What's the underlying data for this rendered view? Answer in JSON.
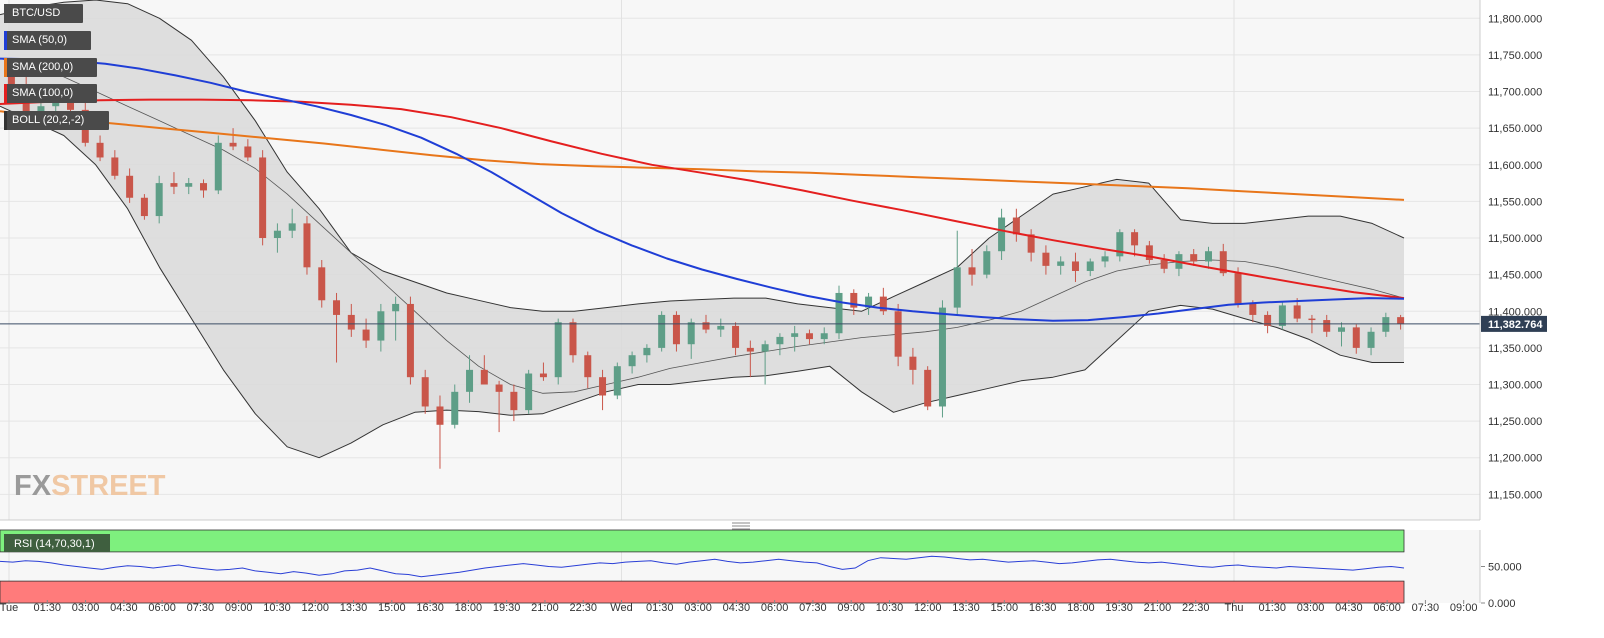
{
  "symbol": "BTC/USD",
  "indicators": [
    {
      "label": "SMA (50,0)",
      "color": "#1f3ed6"
    },
    {
      "label": "SMA (200,0)",
      "color": "#e8761a"
    },
    {
      "label": "SMA (100,0)",
      "color": "#e41f1f"
    },
    {
      "label": "BOLL (20,2,-2)",
      "color": "#333333"
    }
  ],
  "rsi_label": "RSI (14,70,30,1)",
  "logo": {
    "part1": "FX",
    "part2": "STREET"
  },
  "current_price_label": "11,382.764",
  "colors": {
    "up": "#5e9e87",
    "down": "#c9564a",
    "band_fill": "#d9d9d9",
    "sma50": "#1f3ed6",
    "sma100": "#e41f1f",
    "sma200": "#e8761a",
    "rsi": "#2a3fd6",
    "rsi_overbought": "#7ef07e",
    "rsi_oversold": "#ff7b7b"
  },
  "chart_data": [
    {
      "type": "candlestick",
      "title": "BTC/USD",
      "ylim": [
        11115,
        11825
      ],
      "y_ticks": [
        "11,800.000",
        "11,750.000",
        "11,700.000",
        "11,650.000",
        "11,600.000",
        "11,550.000",
        "11,500.000",
        "11,450.000",
        "11,400.000",
        "11,350.000",
        "11,300.000",
        "11,250.000",
        "11,200.000",
        "11,150.000"
      ],
      "x_ticks": [
        "Tue",
        "01:30",
        "03:00",
        "04:30",
        "06:00",
        "07:30",
        "09:00",
        "10:30",
        "12:00",
        "13:30",
        "15:00",
        "16:30",
        "18:00",
        "19:30",
        "21:00",
        "22:30",
        "Wed",
        "01:30",
        "03:00",
        "04:30",
        "06:00",
        "07:30",
        "09:00",
        "10:30",
        "12:00",
        "13:30",
        "15:00",
        "16:30",
        "18:00",
        "19:30",
        "21:00",
        "22:30",
        "Thu",
        "01:30",
        "03:00",
        "04:30",
        "06:00",
        "07:30",
        "09:00"
      ],
      "current_price": 11382.764,
      "grid": true,
      "candles": [
        [
          11730,
          11745,
          11700,
          11710
        ],
        [
          11710,
          11720,
          11668,
          11672
        ],
        [
          11672,
          11688,
          11650,
          11680
        ],
        [
          11680,
          11700,
          11660,
          11690
        ],
        [
          11690,
          11705,
          11670,
          11675
        ],
        [
          11675,
          11685,
          11625,
          11630
        ],
        [
          11630,
          11640,
          11605,
          11610
        ],
        [
          11610,
          11620,
          11580,
          11585
        ],
        [
          11585,
          11595,
          11548,
          11555
        ],
        [
          11555,
          11560,
          11525,
          11530
        ],
        [
          11530,
          11585,
          11520,
          11575
        ],
        [
          11575,
          11590,
          11560,
          11570
        ],
        [
          11570,
          11582,
          11560,
          11575
        ],
        [
          11575,
          11580,
          11555,
          11565
        ],
        [
          11565,
          11640,
          11560,
          11630
        ],
        [
          11630,
          11650,
          11620,
          11625
        ],
        [
          11625,
          11635,
          11605,
          11610
        ],
        [
          11610,
          11620,
          11490,
          11500
        ],
        [
          11500,
          11520,
          11480,
          11510
        ],
        [
          11510,
          11540,
          11500,
          11520
        ],
        [
          11520,
          11530,
          11450,
          11460
        ],
        [
          11460,
          11470,
          11405,
          11415
        ],
        [
          11415,
          11425,
          11330,
          11395
        ],
        [
          11395,
          11410,
          11365,
          11375
        ],
        [
          11375,
          11390,
          11350,
          11360
        ],
        [
          11360,
          11410,
          11345,
          11400
        ],
        [
          11400,
          11420,
          11360,
          11410
        ],
        [
          11410,
          11420,
          11300,
          11310
        ],
        [
          11310,
          11320,
          11260,
          11270
        ],
        [
          11270,
          11285,
          11185,
          11245
        ],
        [
          11245,
          11300,
          11240,
          11290
        ],
        [
          11290,
          11340,
          11275,
          11320
        ],
        [
          11320,
          11340,
          11300,
          11300
        ],
        [
          11300,
          11305,
          11235,
          11290
        ],
        [
          11290,
          11300,
          11250,
          11265
        ],
        [
          11265,
          11320,
          11260,
          11315
        ],
        [
          11315,
          11330,
          11305,
          11310
        ],
        [
          11310,
          11390,
          11300,
          11385
        ],
        [
          11385,
          11390,
          11330,
          11340
        ],
        [
          11340,
          11345,
          11295,
          11310
        ],
        [
          11310,
          11320,
          11265,
          11285
        ],
        [
          11285,
          11330,
          11280,
          11325
        ],
        [
          11325,
          11345,
          11315,
          11340
        ],
        [
          11340,
          11355,
          11330,
          11350
        ],
        [
          11350,
          11400,
          11345,
          11395
        ],
        [
          11395,
          11400,
          11345,
          11355
        ],
        [
          11355,
          11390,
          11335,
          11385
        ],
        [
          11385,
          11395,
          11370,
          11375
        ],
        [
          11375,
          11390,
          11365,
          11380
        ],
        [
          11380,
          11385,
          11340,
          11350
        ],
        [
          11350,
          11360,
          11310,
          11345
        ],
        [
          11345,
          11360,
          11300,
          11355
        ],
        [
          11355,
          11370,
          11340,
          11365
        ],
        [
          11365,
          11380,
          11345,
          11370
        ],
        [
          11370,
          11375,
          11355,
          11362
        ],
        [
          11362,
          11378,
          11355,
          11370
        ],
        [
          11370,
          11435,
          11362,
          11425
        ],
        [
          11425,
          11430,
          11395,
          11405
        ],
        [
          11405,
          11425,
          11395,
          11420
        ],
        [
          11420,
          11432,
          11395,
          11400
        ],
        [
          11400,
          11410,
          11325,
          11338
        ],
        [
          11338,
          11350,
          11300,
          11320
        ],
        [
          11320,
          11325,
          11265,
          11270
        ],
        [
          11270,
          11415,
          11255,
          11405
        ],
        [
          11405,
          11510,
          11395,
          11460
        ],
        [
          11460,
          11485,
          11435,
          11450
        ],
        [
          11450,
          11490,
          11445,
          11482
        ],
        [
          11482,
          11540,
          11470,
          11528
        ],
        [
          11528,
          11540,
          11495,
          11505
        ],
        [
          11505,
          11512,
          11468,
          11480
        ],
        [
          11480,
          11490,
          11450,
          11462
        ],
        [
          11462,
          11475,
          11450,
          11468
        ],
        [
          11468,
          11480,
          11440,
          11455
        ],
        [
          11455,
          11472,
          11448,
          11468
        ],
        [
          11468,
          11482,
          11460,
          11475
        ],
        [
          11475,
          11512,
          11468,
          11508
        ],
        [
          11508,
          11512,
          11475,
          11490
        ],
        [
          11490,
          11496,
          11465,
          11470
        ],
        [
          11470,
          11478,
          11452,
          11458
        ],
        [
          11458,
          11482,
          11448,
          11478
        ],
        [
          11478,
          11485,
          11462,
          11468
        ],
        [
          11468,
          11488,
          11458,
          11482
        ],
        [
          11482,
          11492,
          11448,
          11452
        ],
        [
          11452,
          11460,
          11405,
          11410
        ],
        [
          11410,
          11415,
          11385,
          11395
        ],
        [
          11395,
          11400,
          11370,
          11380
        ],
        [
          11380,
          11413,
          11375,
          11408
        ],
        [
          11408,
          11418,
          11385,
          11390
        ],
        [
          11390,
          11395,
          11370,
          11388
        ],
        [
          11388,
          11395,
          11365,
          11372
        ],
        [
          11372,
          11385,
          11352,
          11378
        ],
        [
          11378,
          11382,
          11342,
          11350
        ],
        [
          11350,
          11378,
          11340,
          11372
        ],
        [
          11372,
          11398,
          11365,
          11392
        ],
        [
          11392,
          11395,
          11375,
          11383
        ]
      ],
      "sma50": [
        11745,
        11744,
        11742,
        11738,
        11731,
        11722,
        11712,
        11700,
        11690,
        11680,
        11668,
        11654,
        11637,
        11615,
        11590,
        11562,
        11534,
        11510,
        11490,
        11472,
        11457,
        11444,
        11432,
        11421,
        11412,
        11405,
        11400,
        11396,
        11392,
        11389,
        11387,
        11388,
        11392,
        11397,
        11403,
        11409,
        11412,
        11414,
        11416,
        11418,
        11417
      ],
      "sma100": [
        11683,
        11686,
        11688,
        11689,
        11689,
        11688,
        11686,
        11682,
        11676,
        11665,
        11650,
        11632,
        11615,
        11600,
        11589,
        11578,
        11565,
        11551,
        11538,
        11524,
        11510,
        11497,
        11485,
        11474,
        11461,
        11449,
        11437,
        11426,
        11418
      ],
      "sma200": [
        11673,
        11665,
        11657,
        11650,
        11643,
        11636,
        11629,
        11621,
        11613,
        11606,
        11601,
        11598,
        11596,
        11594,
        11591,
        11589,
        11586,
        11583,
        11580,
        11577,
        11574,
        11571,
        11568,
        11564,
        11560,
        11556,
        11552
      ],
      "boll_upper": [
        11805,
        11815,
        11822,
        11825,
        11820,
        11800,
        11770,
        11720,
        11660,
        11590,
        11540,
        11480,
        11455,
        11440,
        11425,
        11415,
        11405,
        11400,
        11400,
        11405,
        11410,
        11414,
        11416,
        11418,
        11418,
        11410,
        11405,
        11400,
        11420,
        11440,
        11460,
        11500,
        11530,
        11560,
        11570,
        11580,
        11575,
        11525,
        11520,
        11520,
        11525,
        11530,
        11530,
        11520,
        11500
      ],
      "boll_middle": [
        11745,
        11735,
        11720,
        11700,
        11680,
        11660,
        11640,
        11620,
        11595,
        11560,
        11520,
        11480,
        11440,
        11400,
        11360,
        11325,
        11300,
        11288,
        11290,
        11300,
        11310,
        11322,
        11330,
        11338,
        11345,
        11352,
        11358,
        11364,
        11368,
        11372,
        11378,
        11388,
        11400,
        11420,
        11440,
        11455,
        11463,
        11468,
        11470,
        11468,
        11460,
        11450,
        11440,
        11430,
        11418
      ],
      "boll_lower": [
        11680,
        11660,
        11640,
        11600,
        11540,
        11460,
        11390,
        11320,
        11260,
        11215,
        11200,
        11220,
        11245,
        11262,
        11265,
        11263,
        11258,
        11260,
        11275,
        11290,
        11300,
        11300,
        11305,
        11310,
        11312,
        11318,
        11325,
        11290,
        11262,
        11275,
        11285,
        11295,
        11305,
        11310,
        11320,
        11360,
        11400,
        11408,
        11403,
        11390,
        11378,
        11362,
        11340,
        11330,
        11330
      ],
      "band_x_span": [
        0,
        1404
      ]
    },
    {
      "type": "line",
      "title": "RSI (14,70,30,1)",
      "ylim": [
        0,
        100
      ],
      "y_ticks": [
        "50.000",
        "0.000"
      ],
      "overbought": 70,
      "oversold": 30,
      "values": [
        57,
        56,
        58,
        57,
        55,
        52,
        50,
        48,
        46,
        49,
        51,
        50,
        48,
        50,
        52,
        49,
        47,
        45,
        46,
        48,
        44,
        42,
        40,
        43,
        41,
        38,
        40,
        44,
        45,
        48,
        44,
        40,
        39,
        36,
        38,
        40,
        42,
        45,
        48,
        50,
        52,
        54,
        52,
        50,
        49,
        51,
        53,
        55,
        54,
        56,
        57,
        58,
        55,
        53,
        56,
        58,
        60,
        57,
        55,
        56,
        58,
        60,
        58,
        56,
        55,
        50,
        46,
        48,
        58,
        62,
        61,
        60,
        62,
        64,
        63,
        61,
        59,
        60,
        58,
        56,
        57,
        58,
        56,
        54,
        55,
        57,
        59,
        60,
        58,
        56,
        55,
        56,
        54,
        52,
        50,
        49,
        51,
        52,
        50,
        49,
        48,
        50,
        49,
        48,
        47,
        46,
        45,
        47,
        49,
        50,
        48
      ]
    }
  ]
}
